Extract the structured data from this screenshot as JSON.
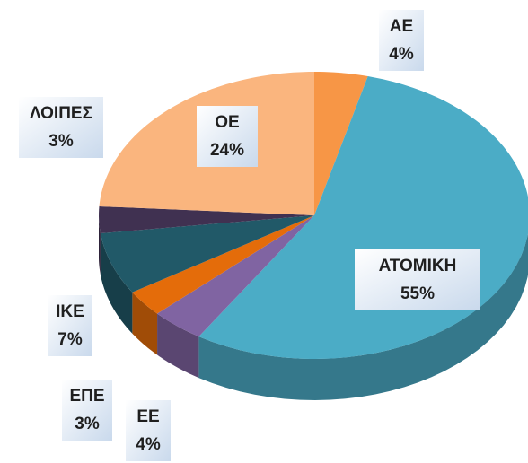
{
  "chart_data": {
    "type": "pie3d",
    "categories": [
      "ΑΕ",
      "ΑΤΟΜΙΚΗ",
      "ΕΕ",
      "ΕΠΕ",
      "ΙΚΕ",
      "ΛΟΙΠΕΣ",
      "ΟΕ"
    ],
    "values": [
      4,
      55,
      4,
      3,
      7,
      3,
      24
    ],
    "value_labels": [
      "4%",
      "55%",
      "4%",
      "3%",
      "7%",
      "3%",
      "24%"
    ],
    "colors": [
      "#f79646",
      "#4bacc6",
      "#8064a2",
      "#e46c0a",
      "#215968",
      "#403151",
      "#fab57e"
    ]
  }
}
